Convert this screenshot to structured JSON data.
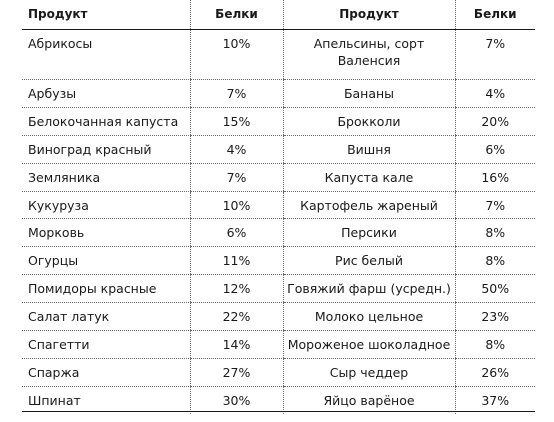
{
  "headers": {
    "product_left": "Продукт",
    "protein_left": "Белки",
    "product_right": "Продукт",
    "protein_right": "Белки"
  },
  "rows": [
    {
      "p1": "Абрикосы",
      "b1": "10%",
      "p2": "Апельсины, сорт Валенсия",
      "b2": "7%"
    },
    {
      "p1": "Арбузы",
      "b1": "7%",
      "p2": "Бананы",
      "b2": "4%"
    },
    {
      "p1": "Белокочанная капуста",
      "b1": "15%",
      "p2": "Брокколи",
      "b2": "20%"
    },
    {
      "p1": "Виноград красный",
      "b1": "4%",
      "p2": "Вишня",
      "b2": "6%"
    },
    {
      "p1": "Земляника",
      "b1": "7%",
      "p2": "Капуста кале",
      "b2": "16%"
    },
    {
      "p1": "Кукуруза",
      "b1": "10%",
      "p2": "Картофель жареный",
      "b2": "7%"
    },
    {
      "p1": "Морковь",
      "b1": "6%",
      "p2": "Персики",
      "b2": "8%"
    },
    {
      "p1": "Огурцы",
      "b1": "11%",
      "p2": "Рис белый",
      "b2": "8%"
    },
    {
      "p1": "Помидоры красные",
      "b1": "12%",
      "p2": "Говяжий фарш (усредн.)",
      "b2": "50%"
    },
    {
      "p1": "Салат латук",
      "b1": "22%",
      "p2": "Молоко цельное",
      "b2": "23%"
    },
    {
      "p1": "Спагетти",
      "b1": "14%",
      "p2": "Мороженое шоколадное",
      "b2": "8%"
    },
    {
      "p1": "Спаржа",
      "b1": "27%",
      "p2": "Сыр чеддер",
      "b2": "26%"
    },
    {
      "p1": "Шпинат",
      "b1": "30%",
      "p2": "Яйцо варёное",
      "b2": "37%"
    }
  ]
}
